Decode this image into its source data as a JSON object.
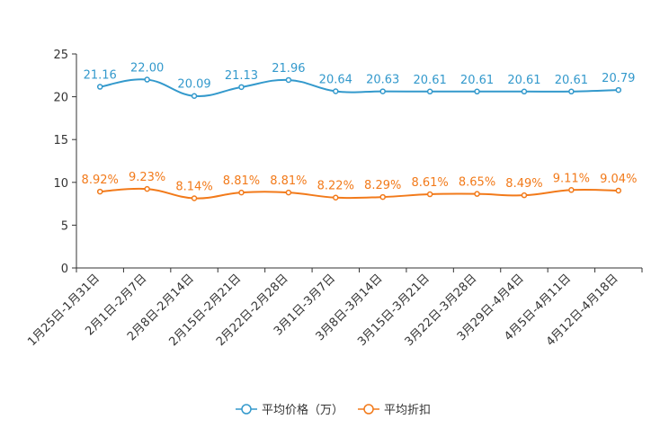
{
  "chart_data": {
    "type": "line",
    "title": "",
    "xlabel": "",
    "ylabel": "",
    "ylim": [
      0,
      25
    ],
    "yticks": [
      0,
      5,
      10,
      15,
      20,
      25
    ],
    "grid": false,
    "legend_position": "bottom-center",
    "categories": [
      "1月25日-1月31日",
      "2月1日-2月7日",
      "2月8日-2月14日",
      "2月15日-2月21日",
      "2月22日-2月28日",
      "3月1日-3月7日",
      "3月8日-3月14日",
      "3月15日-3月21日",
      "3月22日-3月28日",
      "3月29日-4月4日",
      "4月5日-4月11日",
      "4月12日-4月18日"
    ],
    "series": [
      {
        "name": "平均价格（万）",
        "color": "#3399cc",
        "values": [
          21.16,
          22.0,
          20.09,
          21.13,
          21.96,
          20.64,
          20.63,
          20.61,
          20.61,
          20.61,
          20.61,
          20.79
        ],
        "labels": [
          "21.16",
          "22.00",
          "20.09",
          "21.13",
          "21.96",
          "20.64",
          "20.63",
          "20.61",
          "20.61",
          "20.61",
          "20.61",
          "20.79"
        ]
      },
      {
        "name": "平均折扣",
        "color": "#f27a1a",
        "values": [
          8.92,
          9.23,
          8.14,
          8.81,
          8.81,
          8.22,
          8.29,
          8.61,
          8.65,
          8.49,
          9.11,
          9.04
        ],
        "labels": [
          "8.92%",
          "9.23%",
          "8.14%",
          "8.81%",
          "8.81%",
          "8.22%",
          "8.29%",
          "8.61%",
          "8.65%",
          "8.49%",
          "9.11%",
          "9.04%"
        ]
      }
    ]
  }
}
